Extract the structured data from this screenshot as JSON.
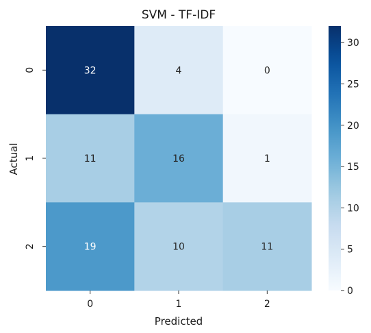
{
  "chart_data": {
    "type": "heatmap",
    "title": "SVM - TF-IDF",
    "xlabel": "Predicted",
    "ylabel": "Actual",
    "x_categories": [
      "0",
      "1",
      "2"
    ],
    "y_categories": [
      "0",
      "1",
      "2"
    ],
    "values": [
      [
        32,
        4,
        0
      ],
      [
        11,
        16,
        1
      ],
      [
        19,
        10,
        11
      ]
    ],
    "colormap": "Blues",
    "vmin": 0,
    "vmax": 32,
    "colorbar_ticks": [
      0,
      5,
      10,
      15,
      20,
      25,
      30
    ],
    "colorbar_tick_labels": [
      "0",
      "5",
      "10",
      "15",
      "20",
      "25",
      "30"
    ],
    "annotations": true
  }
}
